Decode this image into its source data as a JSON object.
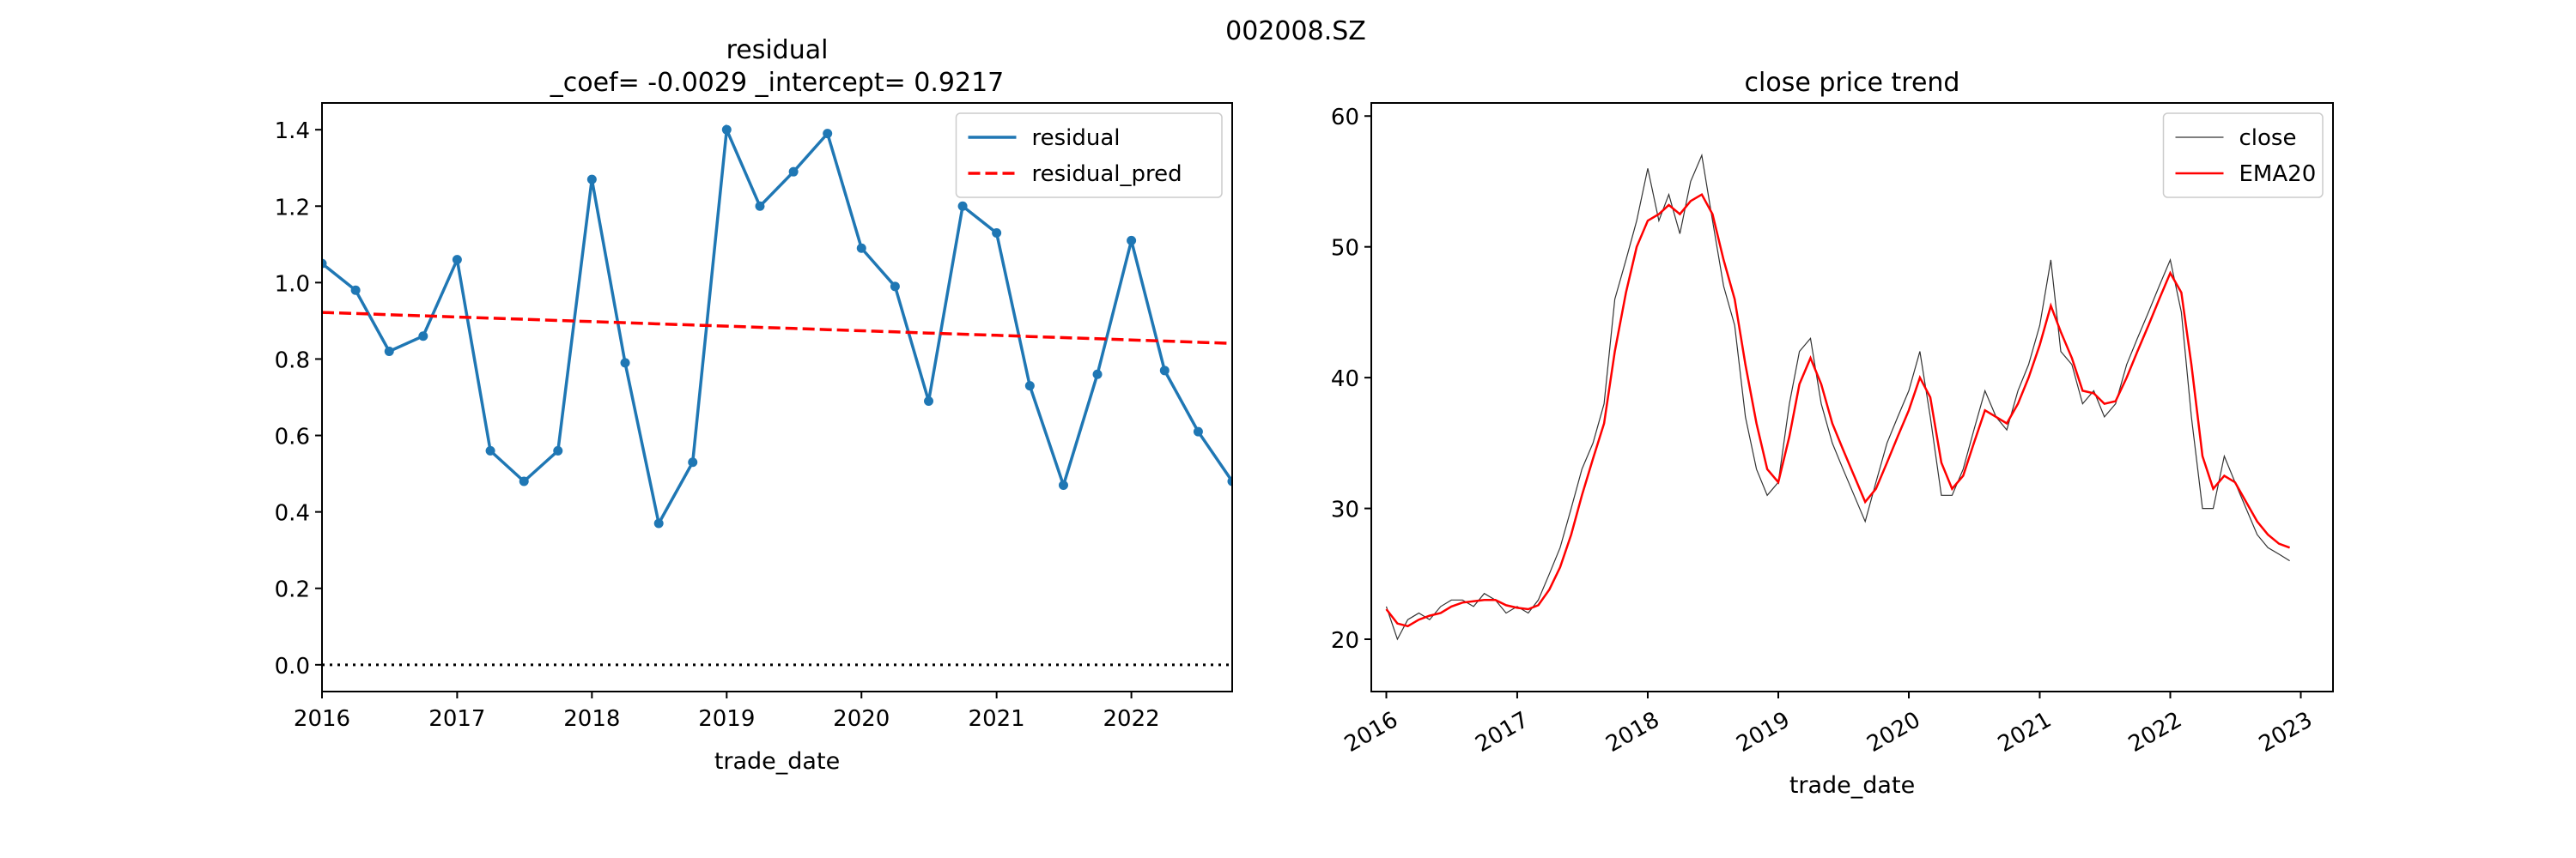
{
  "figure": {
    "suptitle": "002008.SZ"
  },
  "chart_data": [
    {
      "type": "line",
      "title": "residual\n_coef= -0.0029    _intercept= 0.9217",
      "xlabel": "trade_date",
      "ylabel": "",
      "xlim": [
        "2016-01-01",
        "2022-10-01"
      ],
      "ylim": [
        -0.07,
        1.47
      ],
      "x_ticks": [
        "2016",
        "2017",
        "2018",
        "2019",
        "2020",
        "2021",
        "2022"
      ],
      "y_ticks": [
        0.0,
        0.2,
        0.4,
        0.6,
        0.8,
        1.0,
        1.2,
        1.4
      ],
      "legend_position": "top-right",
      "grid": false,
      "x": [
        "2016-01-01",
        "2016-04-01",
        "2016-07-01",
        "2016-10-01",
        "2017-01-01",
        "2017-04-01",
        "2017-07-01",
        "2017-10-01",
        "2018-01-01",
        "2018-04-01",
        "2018-07-01",
        "2018-10-01",
        "2019-01-01",
        "2019-04-01",
        "2019-07-01",
        "2019-10-01",
        "2020-01-01",
        "2020-04-01",
        "2020-07-01",
        "2020-10-01",
        "2021-01-01",
        "2021-04-01",
        "2021-07-01",
        "2021-10-01",
        "2022-01-01",
        "2022-04-01",
        "2022-07-01",
        "2022-10-01"
      ],
      "series": [
        {
          "name": "residual",
          "color": "#1f77b4",
          "style": "solid-markers",
          "values": [
            1.05,
            0.98,
            0.82,
            0.86,
            1.06,
            0.56,
            0.48,
            0.56,
            1.27,
            0.79,
            0.37,
            0.53,
            1.4,
            1.2,
            1.29,
            1.39,
            1.09,
            0.99,
            0.69,
            1.2,
            1.13,
            0.73,
            0.47,
            0.76,
            1.11,
            0.77,
            0.61,
            0.48
          ]
        },
        {
          "name": "residual_pred",
          "color": "#ff0000",
          "style": "dashed",
          "values": [
            0.922,
            0.919,
            0.916,
            0.913,
            0.91,
            0.907,
            0.904,
            0.901,
            0.898,
            0.895,
            0.892,
            0.889,
            0.886,
            0.883,
            0.88,
            0.877,
            0.874,
            0.871,
            0.868,
            0.865,
            0.862,
            0.859,
            0.856,
            0.853,
            0.85,
            0.847,
            0.844,
            0.841
          ]
        }
      ],
      "baseline": {
        "y": 0.0,
        "color": "#000000",
        "style": "dotted"
      }
    },
    {
      "type": "line",
      "title": "close price trend",
      "xlabel": "trade_date",
      "ylabel": "",
      "xlim": [
        "2015-11-20",
        "2023-04-01"
      ],
      "ylim": [
        16,
        61
      ],
      "x_ticks": [
        "2016",
        "2017",
        "2018",
        "2019",
        "2020",
        "2021",
        "2022",
        "2023"
      ],
      "y_ticks": [
        20,
        30,
        40,
        50,
        60
      ],
      "legend_position": "top-right",
      "grid": false,
      "x": [
        "2016-01",
        "2016-02",
        "2016-03",
        "2016-04",
        "2016-05",
        "2016-06",
        "2016-07",
        "2016-08",
        "2016-09",
        "2016-10",
        "2016-11",
        "2016-12",
        "2017-01",
        "2017-02",
        "2017-03",
        "2017-04",
        "2017-05",
        "2017-06",
        "2017-07",
        "2017-08",
        "2017-09",
        "2017-10",
        "2017-11",
        "2017-12",
        "2018-01",
        "2018-02",
        "2018-03",
        "2018-04",
        "2018-05",
        "2018-06",
        "2018-07",
        "2018-08",
        "2018-09",
        "2018-10",
        "2018-11",
        "2018-12",
        "2019-01",
        "2019-02",
        "2019-03",
        "2019-04",
        "2019-05",
        "2019-06",
        "2019-07",
        "2019-08",
        "2019-09",
        "2019-10",
        "2019-11",
        "2019-12",
        "2020-01",
        "2020-02",
        "2020-03",
        "2020-04",
        "2020-05",
        "2020-06",
        "2020-07",
        "2020-08",
        "2020-09",
        "2020-10",
        "2020-11",
        "2020-12",
        "2021-01",
        "2021-02",
        "2021-03",
        "2021-04",
        "2021-05",
        "2021-06",
        "2021-07",
        "2021-08",
        "2021-09",
        "2021-10",
        "2021-11",
        "2021-12",
        "2022-01",
        "2022-02",
        "2022-03",
        "2022-04",
        "2022-05",
        "2022-06",
        "2022-07",
        "2022-08",
        "2022-09",
        "2022-10",
        "2022-11",
        "2022-12"
      ],
      "series": [
        {
          "name": "close",
          "color": "#333333",
          "style": "thin",
          "values": [
            22.5,
            20.0,
            21.5,
            22.0,
            21.5,
            22.5,
            23.0,
            23.0,
            22.5,
            23.5,
            23.0,
            22.0,
            22.5,
            22.0,
            23.0,
            25.0,
            27.0,
            30.0,
            33.0,
            35.0,
            38.0,
            46.0,
            49.0,
            52.0,
            56.0,
            52.0,
            54.0,
            51.0,
            55.0,
            57.0,
            52.0,
            47.0,
            44.0,
            37.0,
            33.0,
            31.0,
            32.0,
            38.0,
            42.0,
            43.0,
            38.0,
            35.0,
            33.0,
            31.0,
            29.0,
            32.0,
            35.0,
            37.0,
            39.0,
            42.0,
            37.0,
            31.0,
            31.0,
            33.0,
            36.0,
            39.0,
            37.0,
            36.0,
            39.0,
            41.0,
            44.0,
            49.0,
            42.0,
            41.0,
            38.0,
            39.0,
            37.0,
            38.0,
            41.0,
            43.0,
            45.0,
            47.0,
            49.0,
            45.0,
            37.0,
            30.0,
            30.0,
            34.0,
            32.0,
            30.0,
            28.0,
            27.0,
            26.5,
            26.0
          ]
        },
        {
          "name": "EMA20",
          "color": "#ff0000",
          "style": "solid",
          "values": [
            22.3,
            21.2,
            21.0,
            21.5,
            21.8,
            22.0,
            22.5,
            22.8,
            22.9,
            23.0,
            23.0,
            22.6,
            22.4,
            22.3,
            22.6,
            23.8,
            25.5,
            28.0,
            31.0,
            33.8,
            36.5,
            42.0,
            46.5,
            50.0,
            52.0,
            52.5,
            53.2,
            52.5,
            53.5,
            54.0,
            52.5,
            49.0,
            46.0,
            41.0,
            36.5,
            33.0,
            32.0,
            35.5,
            39.5,
            41.5,
            39.5,
            36.5,
            34.5,
            32.5,
            30.5,
            31.5,
            33.5,
            35.5,
            37.5,
            40.0,
            38.5,
            33.5,
            31.5,
            32.5,
            35.0,
            37.5,
            37.0,
            36.5,
            38.0,
            40.0,
            42.5,
            45.5,
            43.5,
            41.5,
            39.0,
            38.8,
            38.0,
            38.2,
            40.0,
            42.0,
            44.0,
            46.0,
            48.0,
            46.5,
            41.0,
            34.0,
            31.5,
            32.5,
            32.0,
            30.5,
            29.0,
            28.0,
            27.3,
            27.0
          ]
        }
      ]
    }
  ]
}
